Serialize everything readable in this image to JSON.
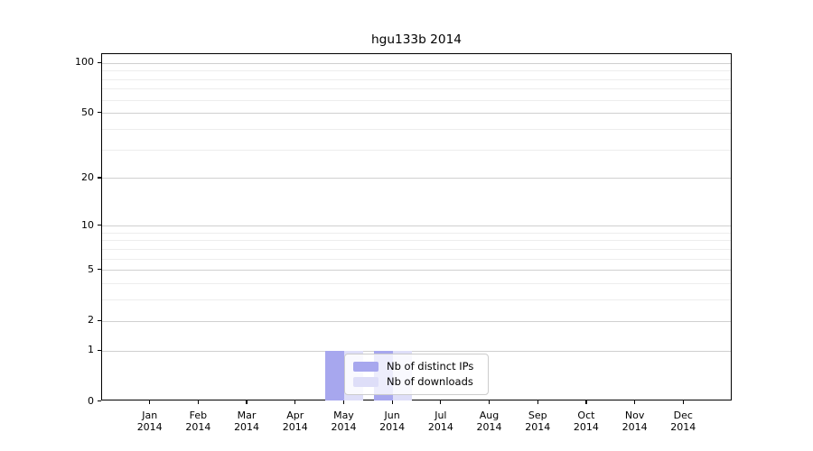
{
  "chart_data": {
    "type": "bar",
    "title": "hgu133b 2014",
    "xlabel": "",
    "ylabel": "",
    "x_categories": [
      "Jan",
      "Feb",
      "Mar",
      "Apr",
      "May",
      "Jun",
      "Jul",
      "Aug",
      "Sep",
      "Oct",
      "Nov",
      "Dec"
    ],
    "x_year_label": "2014",
    "y_scale": "log1p",
    "ylim": [
      0,
      100
    ],
    "y_major_ticks": [
      0,
      1,
      2,
      5,
      10,
      20,
      50,
      100
    ],
    "y_minor_gridlines": [
      3,
      4,
      6,
      7,
      8,
      9,
      30,
      40,
      60,
      70,
      80,
      90
    ],
    "grid": true,
    "legend_position": "inside bottom, left of center, overlapping May-Jun bars",
    "series": [
      {
        "name": "Nb of distinct IPs",
        "color": "#a7a7ee",
        "values": [
          0,
          0,
          0,
          0,
          1,
          1,
          0,
          0,
          0,
          0,
          0,
          0
        ]
      },
      {
        "name": "Nb of downloads",
        "color": "#dedef8",
        "values": [
          0,
          0,
          0,
          0,
          1,
          1,
          0,
          0,
          0,
          0,
          0,
          0
        ]
      }
    ],
    "colors": {
      "axis_frame": "#000000",
      "major_grid": "#d0d0d0",
      "minor_grid": "#ededed",
      "text": "#000000",
      "legend_border": "#cccccc"
    }
  }
}
